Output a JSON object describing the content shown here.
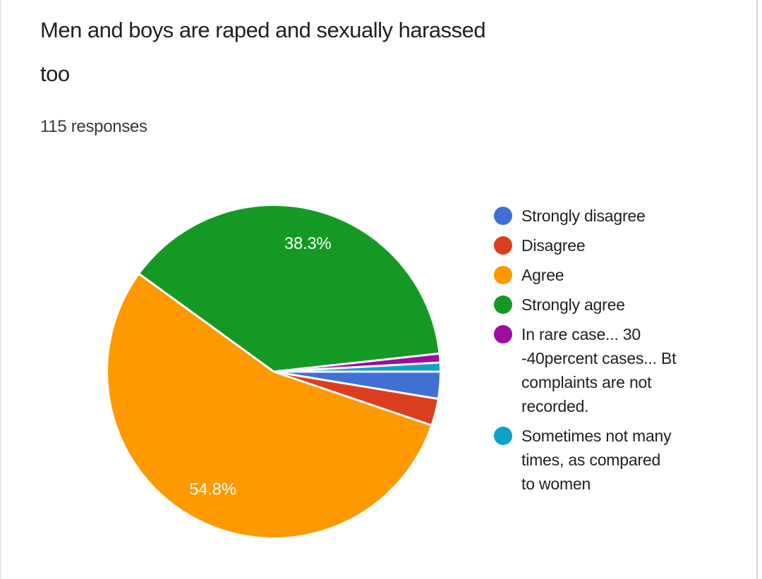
{
  "header": {
    "title": "Men and boys are raped and sexually harassed too",
    "responses": "115 responses"
  },
  "chart_data": {
    "type": "pie",
    "title": "Men and boys are raped and sexually harassed too",
    "total_responses": 115,
    "start_angle_deg": 0,
    "direction": "clockwise",
    "legend_position": "right",
    "slice_label_color": "#ffffff",
    "slice_separator_color": "#ffffff",
    "slices": [
      {
        "label": "Strongly disagree",
        "value": 3,
        "pct": 2.6,
        "color": "#4170D4",
        "pct_label": ""
      },
      {
        "label": "Disagree",
        "value": 3,
        "pct": 2.6,
        "color": "#DB3E1F",
        "pct_label": ""
      },
      {
        "label": "Agree",
        "value": 63,
        "pct": 54.8,
        "color": "#FF9900",
        "pct_label": "54.8%"
      },
      {
        "label": "Strongly agree",
        "value": 44,
        "pct": 38.3,
        "color": "#149A24",
        "pct_label": "38.3%"
      },
      {
        "label": "In rare case... 30 -40percent cases... Bt complaints are not recorded.",
        "value": 1,
        "pct": 0.9,
        "color": "#9C0D9E",
        "pct_label": "",
        "legend_label": "In rare case... 30\n-40percent cases... Bt\ncomplaints are not\nrecorded."
      },
      {
        "label": "Sometimes not many times, as compared to women",
        "value": 1,
        "pct": 0.9,
        "color": "#0FA0C6",
        "pct_label": "",
        "legend_label": "Sometimes not many\ntimes, as compared\nto women"
      }
    ]
  }
}
